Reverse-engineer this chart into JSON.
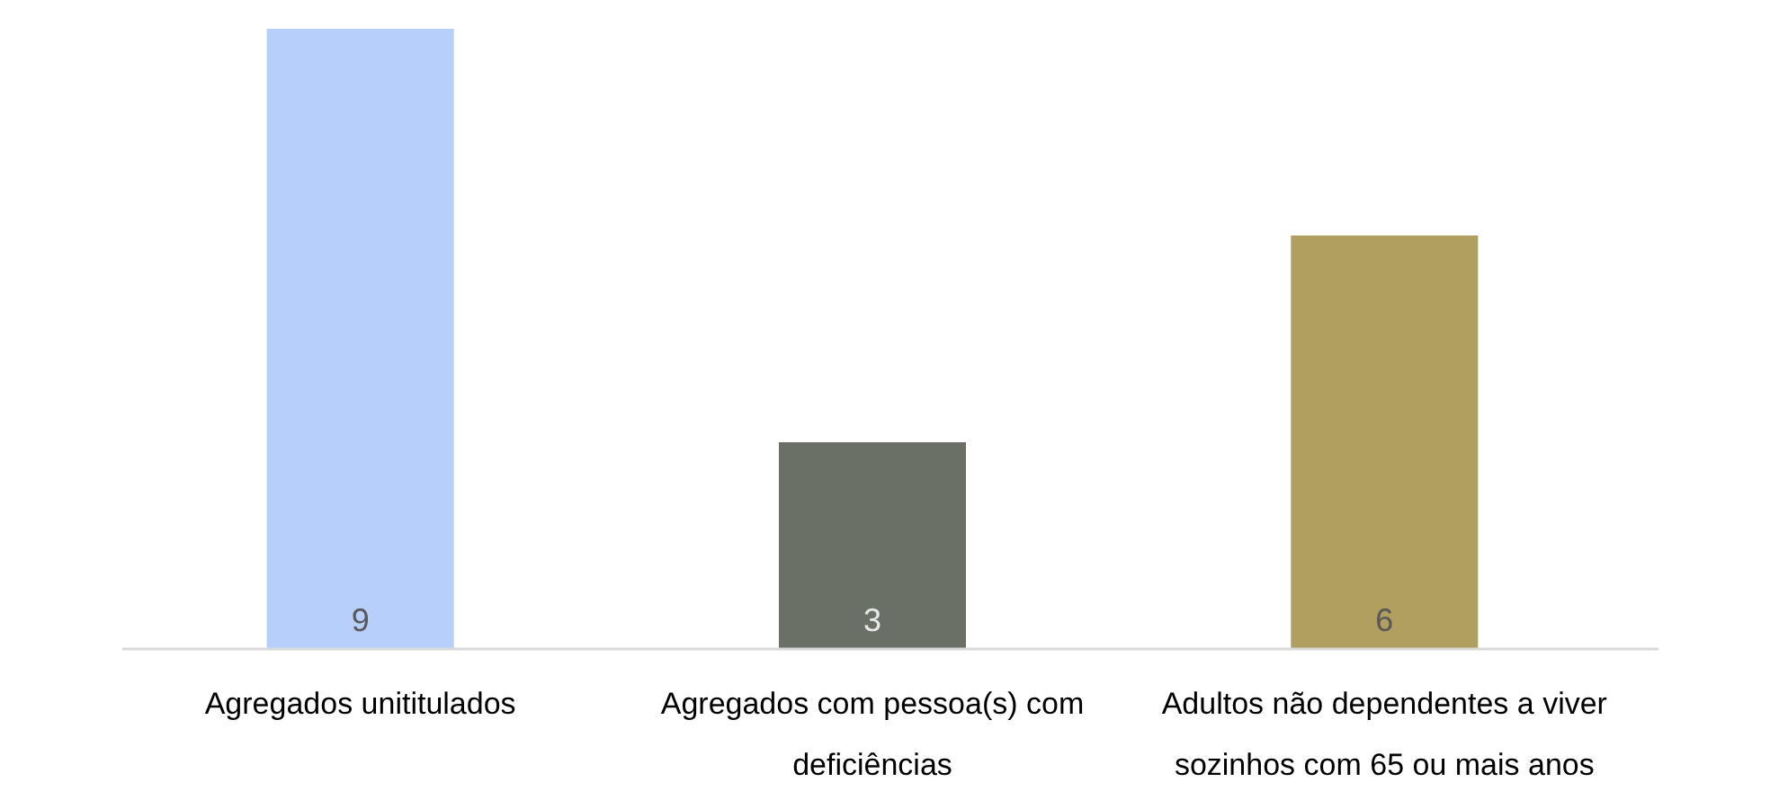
{
  "chart_data": {
    "type": "bar",
    "categories": [
      "Agregados unititulados",
      "Agregados com pessoa(s) com deficiências",
      "Adultos não dependentes a viver sozinhos com 65 ou mais anos"
    ],
    "values": [
      9,
      3,
      6
    ],
    "colors": [
      "#b7d0fb",
      "#6b7066",
      "#b09f5f"
    ],
    "ylim": [
      0,
      9
    ],
    "data_labels": true,
    "tick_labels": "x"
  }
}
